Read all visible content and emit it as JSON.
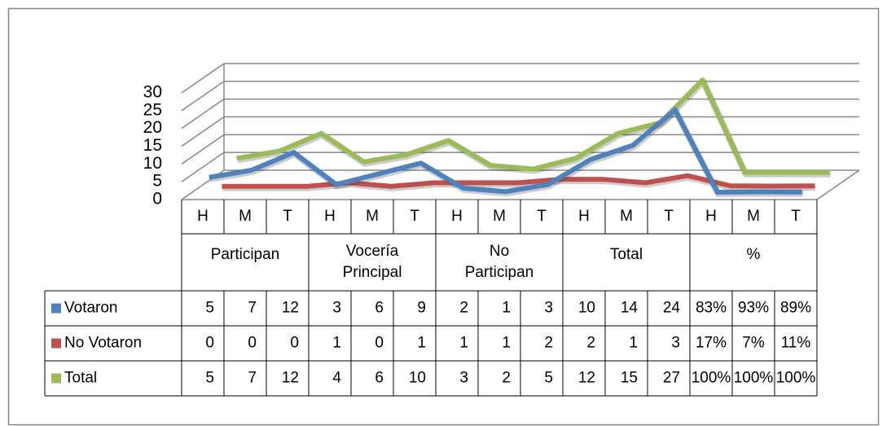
{
  "chart_data": {
    "type": "line",
    "categories": [
      "H",
      "M",
      "T",
      "H",
      "M",
      "T",
      "H",
      "M",
      "T",
      "H",
      "M",
      "T",
      "H",
      "M",
      "T"
    ],
    "group_labels": [
      "Participan",
      "Vocería Principal",
      "No Participan",
      "Total",
      "%"
    ],
    "ylim": [
      0,
      30
    ],
    "yticks": [
      0,
      5,
      10,
      15,
      20,
      25,
      30
    ],
    "grid": true,
    "series": [
      {
        "name": "Votaron",
        "color": "#4f81bd",
        "values": [
          5,
          7,
          12,
          3,
          6,
          9,
          2,
          1,
          3,
          10,
          14,
          24,
          0.83,
          0.93,
          0.89
        ],
        "value_labels": [
          "5",
          "7",
          "12",
          "3",
          "6",
          "9",
          "2",
          "1",
          "3",
          "10",
          "14",
          "24",
          "83%",
          "93%",
          "89%"
        ]
      },
      {
        "name": "No Votaron",
        "color": "#c0504d",
        "values": [
          0,
          0,
          0,
          1,
          0,
          1,
          1,
          1,
          2,
          2,
          1,
          3,
          0.17,
          0.07,
          0.11
        ],
        "value_labels": [
          "0",
          "0",
          "0",
          "1",
          "0",
          "1",
          "1",
          "1",
          "2",
          "2",
          "1",
          "3",
          "17%",
          "7%",
          "11%"
        ]
      },
      {
        "name": "Total",
        "color": "#9bbb59",
        "values": [
          5,
          7,
          12,
          4,
          6,
          10,
          3,
          2,
          5,
          12,
          15,
          27,
          1,
          1,
          1
        ],
        "value_labels": [
          "5",
          "7",
          "12",
          "4",
          "6",
          "10",
          "3",
          "2",
          "5",
          "12",
          "15",
          "27",
          "100%",
          "100%",
          "100%"
        ]
      }
    ]
  }
}
